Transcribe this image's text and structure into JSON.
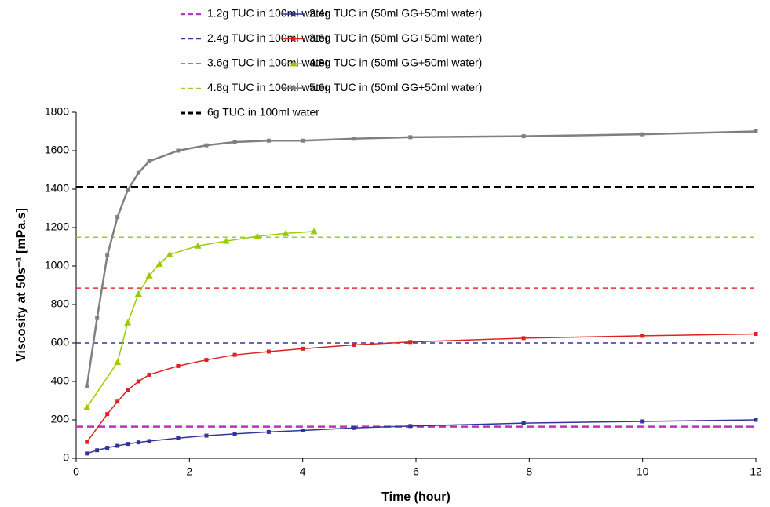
{
  "chart_data": {
    "type": "line",
    "xlabel": "Time (hour)",
    "ylabel": "Viscosity at 50s⁻¹ [mPa.s]",
    "xlim": [
      0,
      12
    ],
    "xticks": [
      0,
      2,
      4,
      6,
      8,
      10,
      12
    ],
    "ylim": [
      0,
      1800
    ],
    "yticks": [
      0,
      200,
      400,
      600,
      800,
      1000,
      1200,
      1400,
      1600,
      1800
    ],
    "grid": false,
    "series": [
      {
        "name": "1.2g TUC in 100ml water",
        "color": "#c030c0",
        "style": "dashed",
        "width": 2.5,
        "marker": "none",
        "x": [
          0,
          12
        ],
        "values": [
          165,
          165
        ]
      },
      {
        "name": "2.4g TUC in 100ml water",
        "color": "#333399",
        "style": "dashed",
        "width": 1.5,
        "marker": "none",
        "x": [
          0,
          12
        ],
        "values": [
          600,
          600
        ]
      },
      {
        "name": "3.6g TUC in 100ml water",
        "color": "#e03030",
        "style": "dashed",
        "width": 1.5,
        "marker": "none",
        "x": [
          0,
          12
        ],
        "values": [
          885,
          885
        ]
      },
      {
        "name": "4.8g TUC in 100ml water",
        "color": "#99cc33",
        "style": "dashed",
        "width": 1.5,
        "marker": "none",
        "x": [
          0,
          12
        ],
        "values": [
          1150,
          1150
        ]
      },
      {
        "name": "6g TUC in 100ml water",
        "color": "#000000",
        "style": "dashed",
        "width": 3,
        "marker": "none",
        "x": [
          0,
          12
        ],
        "values": [
          1410,
          1410
        ]
      },
      {
        "name": "2.4g TUC in (50ml GG+50ml water)",
        "color": "#333399",
        "style": "solid",
        "width": 1.5,
        "marker": "square",
        "x": [
          0.19,
          0.37,
          0.55,
          0.73,
          0.91,
          1.1,
          1.29,
          1.8,
          2.3,
          2.8,
          3.4,
          4,
          4.9,
          5.9,
          7.9,
          10,
          12
        ],
        "values": [
          25,
          42,
          55,
          65,
          75,
          83,
          90,
          105,
          118,
          127,
          137,
          145,
          158,
          168,
          183,
          192,
          200
        ]
      },
      {
        "name": "3.6g TUC in (50ml GG+50ml water)",
        "color": "#dd2222",
        "style": "solid",
        "width": 1.5,
        "marker": "square",
        "x": [
          0.19,
          0.55,
          0.73,
          0.91,
          1.1,
          1.29,
          1.8,
          2.3,
          2.8,
          3.4,
          4,
          4.9,
          5.9,
          7.9,
          10,
          12
        ],
        "values": [
          85,
          230,
          295,
          355,
          400,
          435,
          480,
          512,
          538,
          555,
          570,
          590,
          605,
          625,
          637,
          647
        ]
      },
      {
        "name": "4.8g TUC in (50ml GG+50ml water)",
        "color": "#99cc00",
        "style": "solid",
        "width": 1.5,
        "marker": "triangle",
        "x": [
          0.19,
          0.73,
          0.91,
          1.1,
          1.29,
          1.47,
          1.65,
          2.15,
          2.65,
          3.2,
          3.7,
          4.2
        ],
        "values": [
          265,
          500,
          705,
          855,
          950,
          1010,
          1060,
          1105,
          1130,
          1155,
          1170,
          1180
        ]
      },
      {
        "name": "5.6g TUC in (50ml GG+50ml water)",
        "color": "#808080",
        "style": "solid",
        "width": 2.5,
        "marker": "square",
        "x": [
          0.19,
          0.37,
          0.55,
          0.73,
          0.91,
          1.1,
          1.29,
          1.8,
          2.3,
          2.8,
          3.4,
          4,
          4.9,
          5.9,
          7.9,
          10,
          12
        ],
        "values": [
          375,
          730,
          1055,
          1255,
          1395,
          1485,
          1545,
          1600,
          1628,
          1645,
          1652,
          1652,
          1662,
          1670,
          1675,
          1685,
          1700
        ]
      }
    ]
  }
}
